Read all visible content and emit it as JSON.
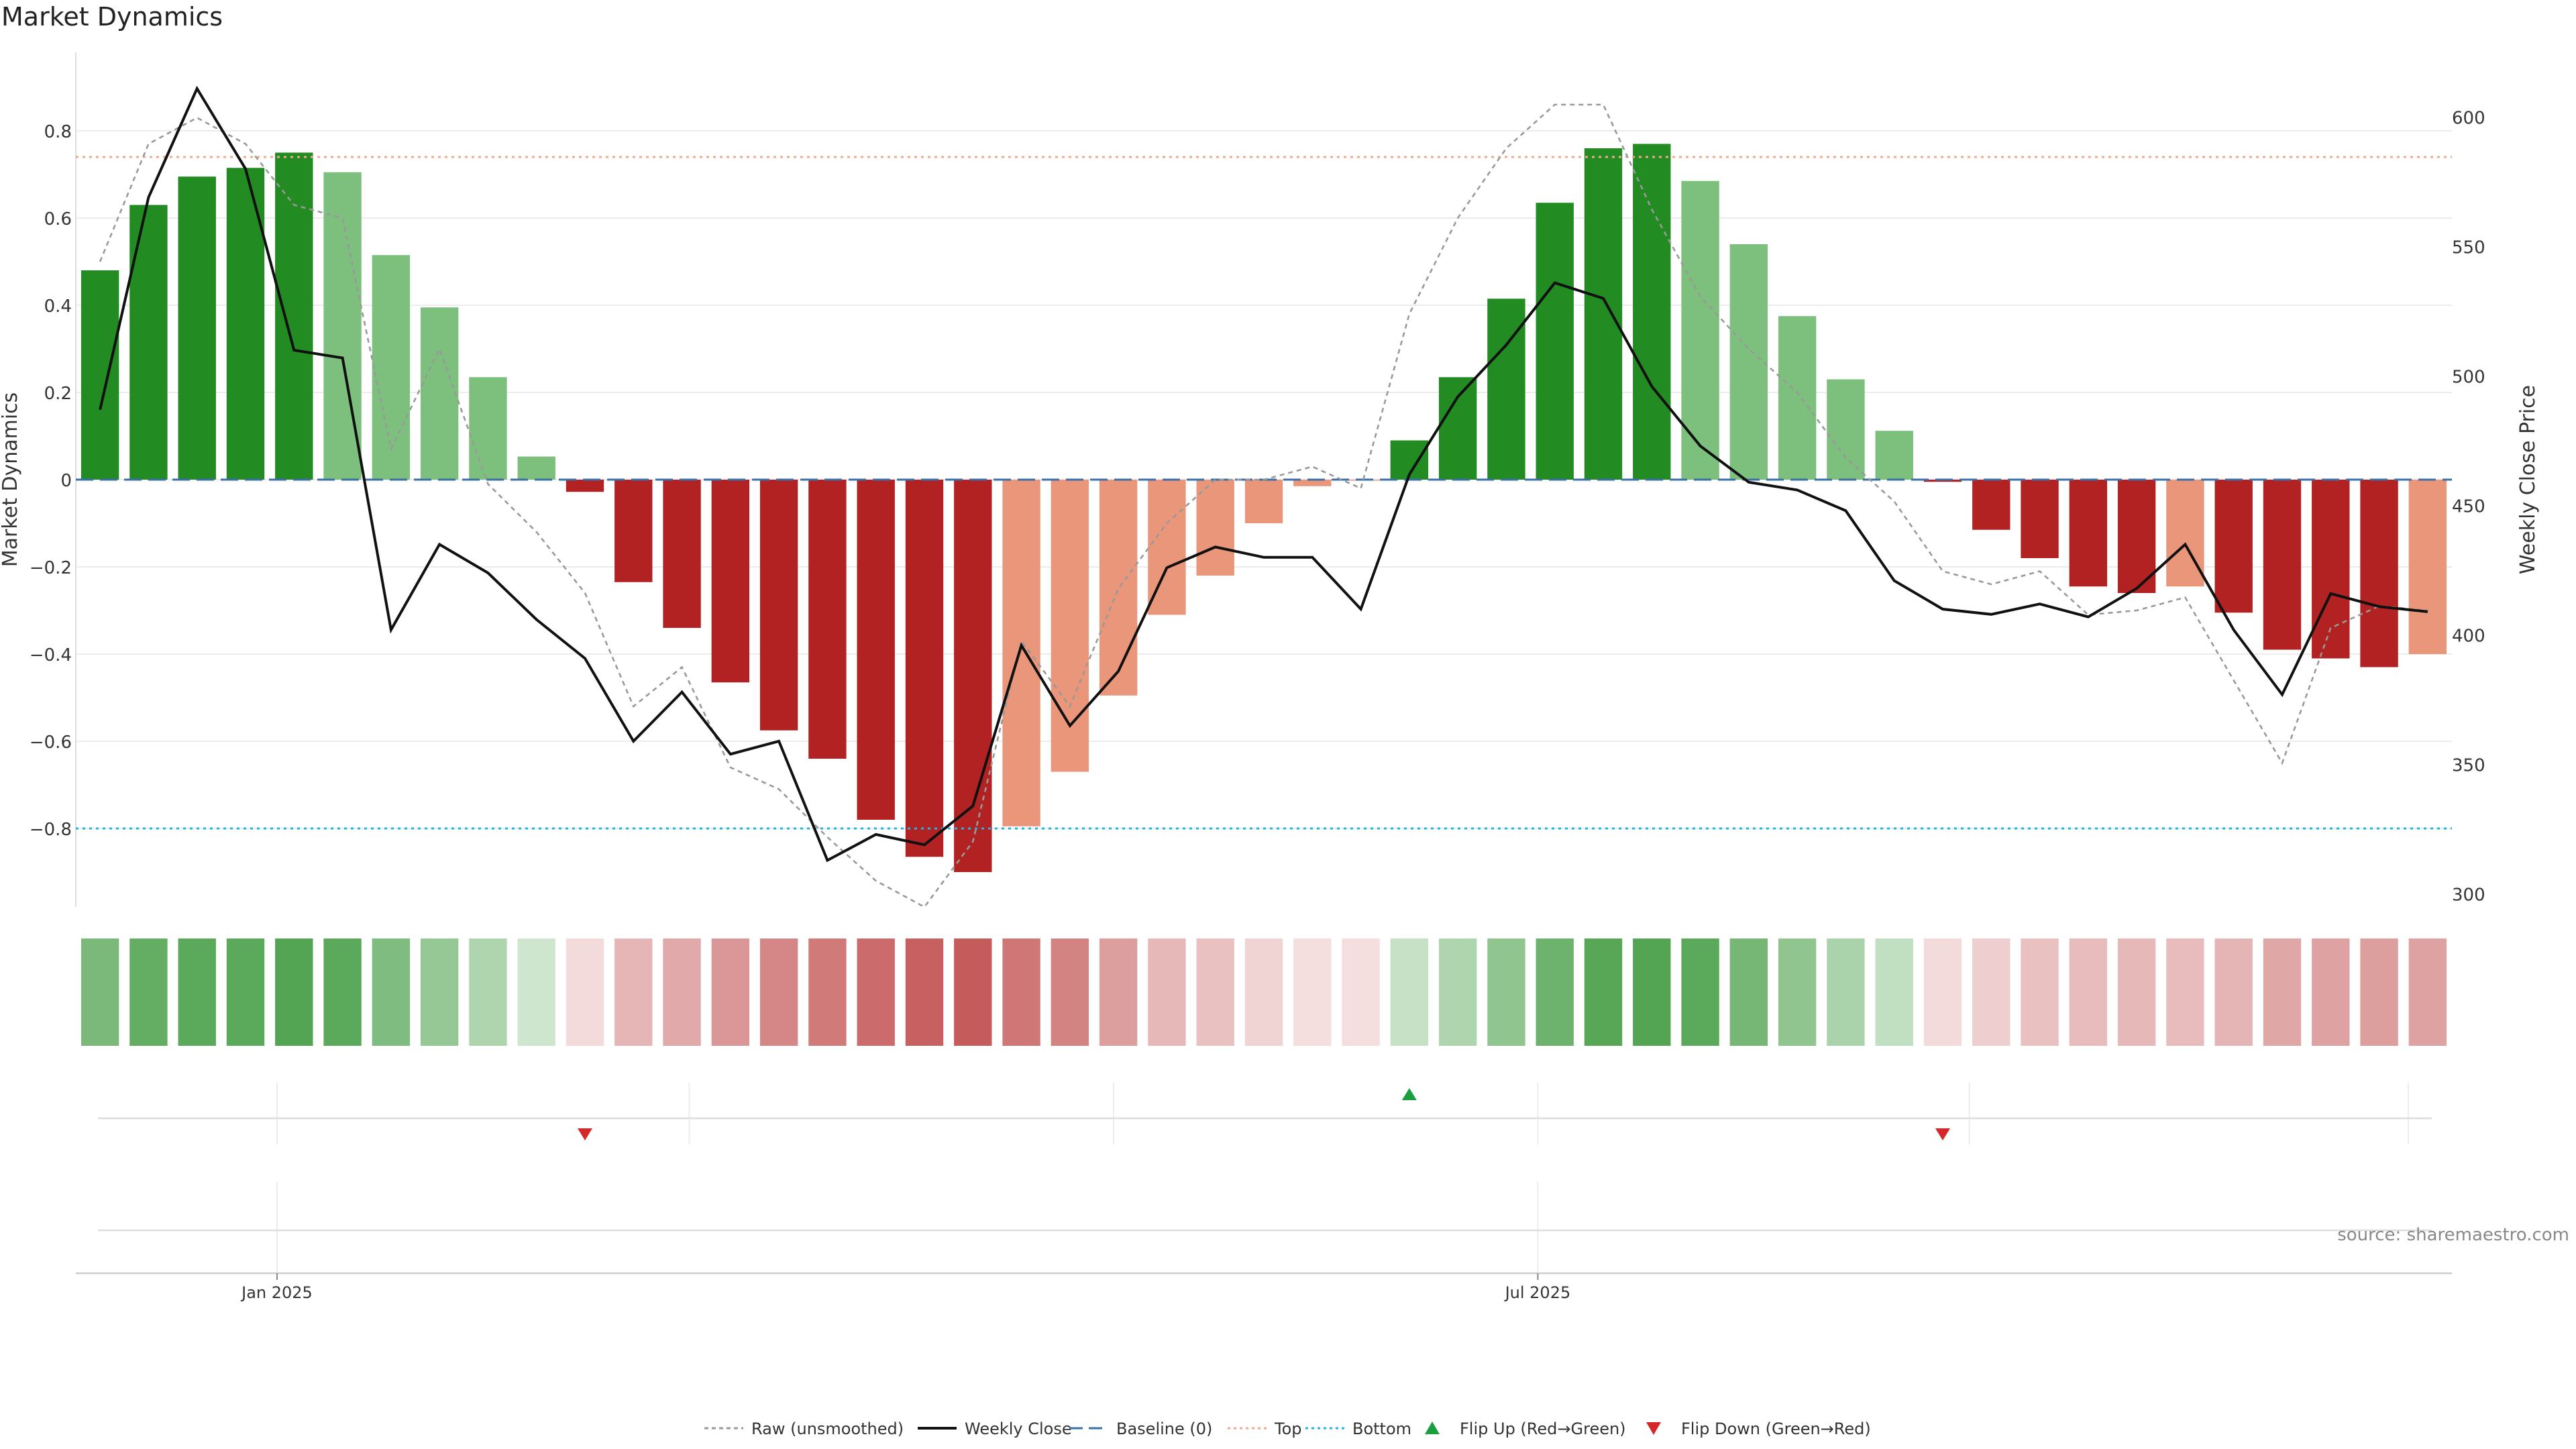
{
  "chart_data": {
    "type": "bar",
    "title": "Market Dynamics",
    "ylabel": "Market Dynamics",
    "y2label": "Weekly Close Price",
    "ylim": [
      -0.98,
      0.98
    ],
    "y2lim": [
      295,
      625
    ],
    "yticks": [
      -0.8,
      -0.6,
      -0.4,
      -0.2,
      0,
      0.2,
      0.4,
      0.6,
      0.8
    ],
    "ytick_labels": [
      "−0.8",
      "−0.6",
      "−0.4",
      "−0.2",
      "0",
      "0.2",
      "0.4",
      "0.6",
      "0.8"
    ],
    "y2ticks": [
      300,
      350,
      400,
      450,
      500,
      550,
      600
    ],
    "y2tick_labels": [
      "300",
      "350",
      "400",
      "450",
      "500",
      "550",
      "600"
    ],
    "xtick_labels": [
      {
        "label": "Jan 2025",
        "week": 3.65
      },
      {
        "label": "Jul 2025",
        "week": 29.65
      }
    ],
    "lane_gridlines_weeks": [
      3.65,
      12.15,
      20.9,
      29.65,
      38.55,
      47.6
    ],
    "top_level": 0.74,
    "bottom_level": -0.8,
    "dynamics": [
      0.48,
      0.63,
      0.695,
      0.715,
      0.75,
      0.705,
      0.515,
      0.395,
      0.235,
      0.053,
      -0.028,
      -0.235,
      -0.34,
      -0.465,
      -0.575,
      -0.64,
      -0.78,
      -0.865,
      -0.9,
      -0.795,
      -0.67,
      -0.495,
      -0.31,
      -0.22,
      -0.1,
      -0.015,
      0,
      0.09,
      0.235,
      0.415,
      0.635,
      0.76,
      0.77,
      0.685,
      0.54,
      0.375,
      0.23,
      0.112,
      -0.005,
      -0.115,
      -0.18,
      -0.245,
      -0.26,
      -0.245,
      -0.305,
      -0.39,
      -0.41,
      -0.43,
      -0.4
    ],
    "bar_colors": [
      "#228B22",
      "#228B22",
      "#228B22",
      "#228B22",
      "#228B22",
      "#7DBF7D",
      "#7DBF7D",
      "#7DBF7D",
      "#7DBF7D",
      "#7DBF7D",
      "#B22222",
      "#B22222",
      "#B22222",
      "#B22222",
      "#B22222",
      "#B22222",
      "#B22222",
      "#B22222",
      "#B22222",
      "#E9967A",
      "#E9967A",
      "#E9967A",
      "#E9967A",
      "#E9967A",
      "#E9967A",
      "#E9967A",
      "#E9967A",
      "#228B22",
      "#228B22",
      "#228B22",
      "#228B22",
      "#228B22",
      "#228B22",
      "#7DBF7D",
      "#7DBF7D",
      "#7DBF7D",
      "#7DBF7D",
      "#7DBF7D",
      "#B22222",
      "#B22222",
      "#B22222",
      "#B22222",
      "#B22222",
      "#E9967A",
      "#B22222",
      "#B22222",
      "#B22222",
      "#B22222",
      "#E9967A"
    ],
    "weekly_close": [
      487,
      569,
      611,
      580,
      510,
      507,
      402,
      435,
      424,
      406,
      391,
      359,
      378,
      354,
      359,
      313,
      323,
      319,
      334,
      396,
      365,
      386,
      426,
      434,
      430,
      430,
      410,
      462,
      492,
      512,
      536,
      530,
      496,
      473,
      459,
      456,
      448,
      421,
      410,
      408,
      412,
      407,
      418,
      435,
      402,
      377,
      416,
      411,
      409
    ],
    "raw_unsmoothed": [
      0.5,
      0.77,
      0.83,
      0.77,
      0.63,
      0.6,
      0.07,
      0.3,
      -0.01,
      -0.12,
      -0.26,
      -0.52,
      -0.43,
      -0.66,
      -0.71,
      -0.82,
      -0.92,
      -1.02,
      -0.83,
      -0.37,
      -0.52,
      -0.25,
      -0.1,
      0.0,
      0.0,
      0.03,
      -0.02,
      0.38,
      0.6,
      0.76,
      0.86,
      0.86,
      0.62,
      0.42,
      0.3,
      0.2,
      0.05,
      -0.05,
      -0.21,
      -0.24,
      -0.21,
      -0.31,
      -0.3,
      -0.27,
      -0.46,
      -0.65,
      -0.34,
      -0.29,
      -0.3
    ],
    "intensity_strip": [
      {
        "color": "#228B22",
        "opacity": 0.6
      },
      {
        "color": "#228B22",
        "opacity": 0.7
      },
      {
        "color": "#228B22",
        "opacity": 0.74
      },
      {
        "color": "#228B22",
        "opacity": 0.74
      },
      {
        "color": "#228B22",
        "opacity": 0.78
      },
      {
        "color": "#228B22",
        "opacity": 0.74
      },
      {
        "color": "#228B22",
        "opacity": 0.58
      },
      {
        "color": "#228B22",
        "opacity": 0.48
      },
      {
        "color": "#228B22",
        "opacity": 0.36
      },
      {
        "color": "#228B22",
        "opacity": 0.22
      },
      {
        "color": "#B22222",
        "opacity": 0.16
      },
      {
        "color": "#B22222",
        "opacity": 0.33
      },
      {
        "color": "#B22222",
        "opacity": 0.39
      },
      {
        "color": "#B22222",
        "opacity": 0.47
      },
      {
        "color": "#B22222",
        "opacity": 0.54
      },
      {
        "color": "#B22222",
        "opacity": 0.6
      },
      {
        "color": "#B22222",
        "opacity": 0.67
      },
      {
        "color": "#B22222",
        "opacity": 0.72
      },
      {
        "color": "#B22222",
        "opacity": 0.74
      },
      {
        "color": "#B22222",
        "opacity": 0.62
      },
      {
        "color": "#B22222",
        "opacity": 0.56
      },
      {
        "color": "#B22222",
        "opacity": 0.44
      },
      {
        "color": "#B22222",
        "opacity": 0.32
      },
      {
        "color": "#B22222",
        "opacity": 0.28
      },
      {
        "color": "#B22222",
        "opacity": 0.2
      },
      {
        "color": "#B22222",
        "opacity": 0.15
      },
      {
        "color": "#B22222",
        "opacity": 0.15
      },
      {
        "color": "#228B22",
        "opacity": 0.26
      },
      {
        "color": "#228B22",
        "opacity": 0.36
      },
      {
        "color": "#228B22",
        "opacity": 0.5
      },
      {
        "color": "#228B22",
        "opacity": 0.66
      },
      {
        "color": "#228B22",
        "opacity": 0.76
      },
      {
        "color": "#228B22",
        "opacity": 0.78
      },
      {
        "color": "#228B22",
        "opacity": 0.74
      },
      {
        "color": "#228B22",
        "opacity": 0.62
      },
      {
        "color": "#228B22",
        "opacity": 0.5
      },
      {
        "color": "#228B22",
        "opacity": 0.38
      },
      {
        "color": "#228B22",
        "opacity": 0.28
      },
      {
        "color": "#B22222",
        "opacity": 0.16
      },
      {
        "color": "#B22222",
        "opacity": 0.22
      },
      {
        "color": "#B22222",
        "opacity": 0.28
      },
      {
        "color": "#B22222",
        "opacity": 0.3
      },
      {
        "color": "#B22222",
        "opacity": 0.32
      },
      {
        "color": "#B22222",
        "opacity": 0.3
      },
      {
        "color": "#B22222",
        "opacity": 0.34
      },
      {
        "color": "#B22222",
        "opacity": 0.4
      },
      {
        "color": "#B22222",
        "opacity": 0.42
      },
      {
        "color": "#B22222",
        "opacity": 0.44
      },
      {
        "color": "#B22222",
        "opacity": 0.42
      }
    ],
    "flip_up_weeks": [
      27
    ],
    "flip_down_weeks": [
      10,
      38
    ],
    "colors": {
      "raw": "#999999",
      "weekly_close": "#111111",
      "baseline": "#3a6fa8",
      "top": "#f0a890",
      "bottom": "#1db6e6",
      "flip_up": "#1b9e3e",
      "flip_down": "#d62728",
      "strip_green": "#228B22",
      "strip_red": "#B22222"
    },
    "legend": [
      {
        "label": "Raw (unsmoothed)",
        "kind": "raw"
      },
      {
        "label": "Weekly Close",
        "kind": "close"
      },
      {
        "label": "Baseline (0)",
        "kind": "baseline"
      },
      {
        "label": "Top",
        "kind": "top"
      },
      {
        "label": "Bottom",
        "kind": "bottom"
      },
      {
        "label": "Flip Up (Red→Green)",
        "kind": "flip-up"
      },
      {
        "label": "Flip Down (Green→Red)",
        "kind": "flip-down"
      }
    ],
    "legend_position": "bottom-center",
    "source": "source: sharemaestro.com"
  }
}
